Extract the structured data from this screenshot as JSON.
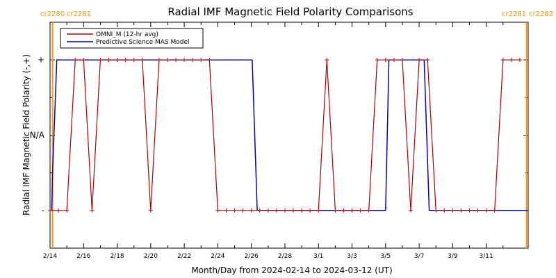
{
  "chart_data": {
    "type": "line",
    "title": "Radial IMF Magnetic Field Polarity Comparisons",
    "xlabel": "Month/Day from 2024-02-14 to 2024-03-12 (UT)",
    "ylabel": "Radial IMF Magnetic Field Polarity (-,+)",
    "x_unit": "days",
    "xlim": [
      0,
      28.5
    ],
    "ylim": [
      -1.5,
      1.5
    ],
    "x_ticks": [
      {
        "x": 0,
        "label": "2/14"
      },
      {
        "x": 2,
        "label": "2/16"
      },
      {
        "x": 4,
        "label": "2/18"
      },
      {
        "x": 6,
        "label": "2/20"
      },
      {
        "x": 8,
        "label": "2/22"
      },
      {
        "x": 10,
        "label": "2/24"
      },
      {
        "x": 12,
        "label": "2/26"
      },
      {
        "x": 14,
        "label": "2/28"
      },
      {
        "x": 16,
        "label": "3/1"
      },
      {
        "x": 18,
        "label": "3/3"
      },
      {
        "x": 20,
        "label": "3/5"
      },
      {
        "x": 22,
        "label": "3/7"
      },
      {
        "x": 24,
        "label": "3/9"
      },
      {
        "x": 26,
        "label": "3/11"
      }
    ],
    "y_ticks": [
      {
        "y": 1,
        "label": "+"
      },
      {
        "y": 0,
        "label": "N/A"
      },
      {
        "y": -1,
        "label": "-"
      }
    ],
    "carrington_markers": [
      {
        "x": 0.15,
        "left_label": "cr2280",
        "right_label": "cr2281",
        "color": "#ff9900",
        "corner": "top-left"
      },
      {
        "x": 28.4,
        "left_label": "cr2281",
        "right_label": "cr2282",
        "color": "#ff9900",
        "corner": "top-right"
      }
    ],
    "legend_position": "top-left",
    "series": [
      {
        "name": "OMNI_M (12-hr avg)",
        "color": "#b00000",
        "marker": "+",
        "x": [
          0,
          0.5,
          1,
          1.5,
          2,
          2.5,
          3,
          3.5,
          4,
          4.5,
          5,
          5.5,
          6,
          6.5,
          7,
          7.5,
          8,
          8.5,
          9,
          9.5,
          10,
          10.5,
          11,
          11.5,
          12,
          12.5,
          13,
          13.5,
          14,
          14.5,
          15,
          15.5,
          16,
          16.5,
          17,
          17.5,
          18,
          18.5,
          19,
          19.5,
          20,
          20.5,
          21,
          21.5,
          22,
          22.5,
          23,
          23.5,
          24,
          24.5,
          25,
          25.5,
          26,
          26.5,
          27,
          27.5,
          28
        ],
        "y": [
          -1,
          -1,
          -1,
          1,
          1,
          -1,
          1,
          1,
          1,
          1,
          1,
          1,
          -1,
          1,
          1,
          1,
          1,
          1,
          1,
          1,
          -1,
          -1,
          -1,
          -1,
          -1,
          -1,
          -1,
          -1,
          -1,
          -1,
          -1,
          -1,
          -1,
          1,
          -1,
          -1,
          -1,
          -1,
          -1,
          1,
          1,
          1,
          1,
          -1,
          1,
          1,
          -1,
          -1,
          -1,
          -1,
          -1,
          -1,
          -1,
          -1,
          1,
          1,
          1
        ]
      },
      {
        "name": "Predictive Science MAS Model",
        "color": "#0000cc",
        "step_points": [
          [
            0.1,
            -1
          ],
          [
            0.15,
            -0.5
          ],
          [
            0.4,
            1
          ],
          [
            12.05,
            1
          ],
          [
            12.35,
            -1
          ],
          [
            20.0,
            -1
          ],
          [
            20.2,
            1
          ],
          [
            22.3,
            1
          ],
          [
            22.6,
            -1
          ],
          [
            28.5,
            -1
          ]
        ]
      }
    ]
  }
}
